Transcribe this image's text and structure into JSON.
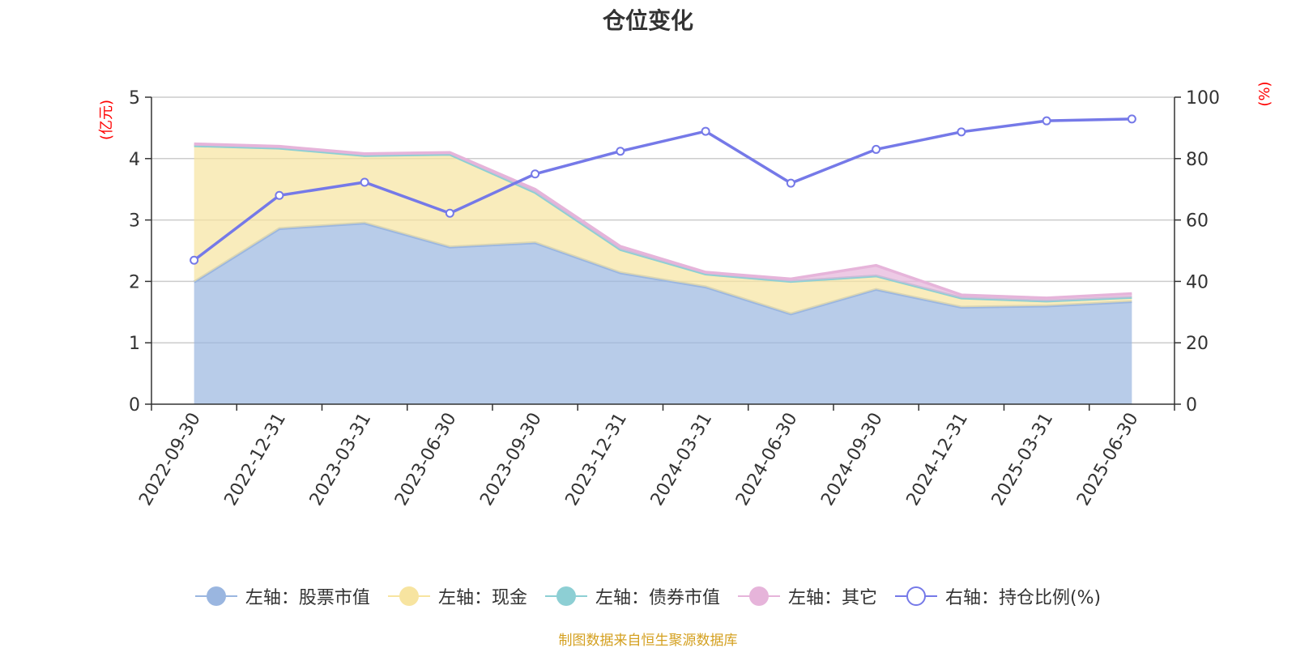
{
  "title": "仓位变化",
  "source_note": "制图数据来自恒生聚源数据库",
  "colors": {
    "stock": "#9ab6e0",
    "cash": "#f7e4a0",
    "bond": "#8dcfd4",
    "other": "#e6b4da",
    "ratio": "#7579e8",
    "axis_unit": "#ff0000",
    "grid": "#cccccc",
    "axis": "#333333"
  },
  "legend": [
    {
      "key": "stock",
      "label": "左轴：股票市值",
      "style": "filled"
    },
    {
      "key": "cash",
      "label": "左轴：现金",
      "style": "filled"
    },
    {
      "key": "bond",
      "label": "左轴：债券市值",
      "style": "filled"
    },
    {
      "key": "other",
      "label": "左轴：其它",
      "style": "filled"
    },
    {
      "key": "ratio",
      "label": "右轴：持仓比例(%)",
      "style": "hollow"
    }
  ],
  "chart_data": {
    "type": "area",
    "title": "仓位变化",
    "categories": [
      "2022-09-30",
      "2022-12-31",
      "2023-03-31",
      "2023-06-30",
      "2023-09-30",
      "2023-12-31",
      "2024-03-31",
      "2024-06-30",
      "2024-09-30",
      "2024-12-31",
      "2025-03-31",
      "2025-06-30"
    ],
    "left_axis": {
      "unit_label": "(亿元)",
      "ylim": [
        0,
        5
      ],
      "ticks": [
        0,
        1,
        2,
        3,
        4,
        5
      ]
    },
    "right_axis": {
      "unit_label": "(%)",
      "ylim": [
        0,
        100
      ],
      "ticks": [
        0,
        20,
        40,
        60,
        80,
        100
      ]
    },
    "grid": true,
    "legend_position": "bottom",
    "series": [
      {
        "key": "stock",
        "name": "左轴：股票市值",
        "axis": "left",
        "stacked": true,
        "values": [
          1.99,
          2.86,
          2.95,
          2.56,
          2.63,
          2.14,
          1.91,
          1.47,
          1.87,
          1.58,
          1.6,
          1.67
        ]
      },
      {
        "key": "cash",
        "name": "左轴：现金",
        "axis": "left",
        "stacked": true,
        "values": [
          2.22,
          1.31,
          1.1,
          1.51,
          0.82,
          0.38,
          0.21,
          0.53,
          0.22,
          0.15,
          0.08,
          0.07
        ]
      },
      {
        "key": "bond",
        "name": "左轴：债券市值",
        "axis": "left",
        "stacked": true,
        "values": [
          0,
          0,
          0,
          0,
          0,
          0,
          0,
          0,
          0,
          0,
          0,
          0
        ]
      },
      {
        "key": "other",
        "name": "左轴：其它",
        "axis": "left",
        "stacked": true,
        "values": [
          0.03,
          0.03,
          0.03,
          0.03,
          0.05,
          0.05,
          0.03,
          0.04,
          0.17,
          0.05,
          0.05,
          0.06
        ]
      },
      {
        "key": "ratio",
        "name": "右轴：持仓比例(%)",
        "axis": "right",
        "type": "line",
        "values": [
          46.9,
          68.0,
          72.3,
          62.2,
          75.0,
          82.4,
          88.9,
          72.0,
          83.0,
          88.7,
          92.3,
          92.9
        ]
      }
    ]
  }
}
